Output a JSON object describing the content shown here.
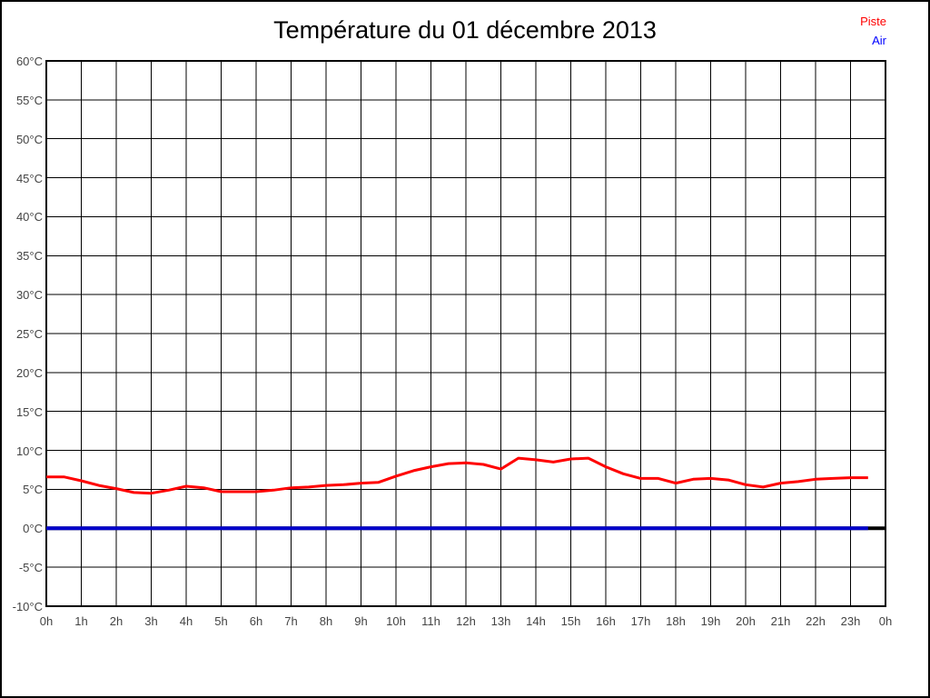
{
  "window": {
    "background": "#ffffff",
    "border_color": "#000000"
  },
  "chart_data": {
    "type": "line",
    "title": "Température du 01 décembre 2013",
    "xlabel": "",
    "ylabel": "",
    "x_range": [
      0,
      24
    ],
    "y_range": [
      -10,
      60
    ],
    "y_tick_step": 5,
    "grid": true,
    "grid_color": "#000000",
    "x_tick_labels": [
      "0h",
      "1h",
      "2h",
      "3h",
      "4h",
      "5h",
      "6h",
      "7h",
      "8h",
      "9h",
      "10h",
      "11h",
      "12h",
      "13h",
      "14h",
      "15h",
      "16h",
      "17h",
      "18h",
      "19h",
      "20h",
      "21h",
      "22h",
      "23h",
      "0h"
    ],
    "y_tick_labels": [
      "60°C",
      "55°C",
      "50°C",
      "45°C",
      "40°C",
      "35°C",
      "30°C",
      "25°C",
      "20°C",
      "15°C",
      "10°C",
      "5°C",
      "0°C",
      "-5°C",
      "-10°C"
    ],
    "legend": {
      "position": "top-right",
      "entries": [
        {
          "label": "Piste",
          "color": "#ff0000"
        },
        {
          "label": "Air",
          "color": "#0000ff"
        }
      ]
    },
    "zero_axis": {
      "y": 0,
      "color": "#000000",
      "width": 4
    },
    "series": [
      {
        "name": "Piste",
        "color": "#ff0000",
        "width": 3,
        "x_start": 0,
        "x_step": 0.5,
        "values": [
          6.6,
          6.6,
          6.1,
          5.5,
          5.1,
          4.6,
          4.5,
          4.9,
          5.4,
          5.2,
          4.7,
          4.7,
          4.7,
          4.9,
          5.2,
          5.3,
          5.5,
          5.6,
          5.8,
          5.9,
          6.7,
          7.4,
          7.9,
          8.3,
          8.4,
          8.2,
          7.6,
          9.0,
          8.8,
          8.5,
          8.9,
          9.0,
          7.9,
          7.0,
          6.4,
          6.4,
          5.8,
          6.3,
          6.4,
          6.2,
          5.6,
          5.3,
          5.8,
          6.0,
          6.3,
          6.4,
          6.5,
          6.5
        ]
      },
      {
        "name": "Air",
        "color": "#0000cc",
        "width": 4,
        "x_start": 0,
        "x_step": 23.5,
        "values": [
          0,
          0
        ]
      }
    ]
  }
}
